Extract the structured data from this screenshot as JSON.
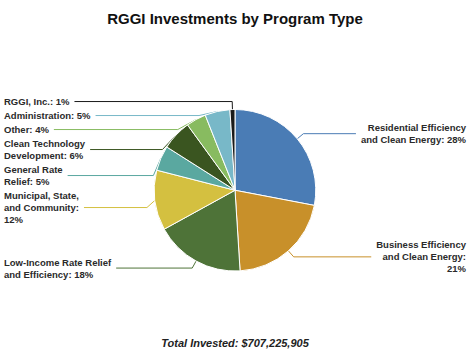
{
  "chart_data": {
    "type": "pie",
    "title": "RGGI Investments by Program Type",
    "subtitle": "Total Invested: $707,225,905",
    "categories": [
      "Residential Efficiency\nand Clean Energy: 28%",
      "Business Efficiency\nand Clean Energy:\n21%",
      "Low-Income Rate Relief\nand Efficiency: 18%",
      "Municipal, State,\nand Community:\n12%",
      "General Rate\nRelief: 5%",
      "Clean Technology\nDevelopment: 6%",
      "Other: 4%",
      "Administration: 5%",
      "RGGI, Inc.: 1%"
    ],
    "values": [
      28,
      21,
      18,
      12,
      5,
      6,
      4,
      5,
      1
    ],
    "colors": [
      "#4a7cb5",
      "#c8902a",
      "#4e7338",
      "#d4c040",
      "#5aa8a0",
      "#3a5520",
      "#88bb60",
      "#78b8c8",
      "#1a1a1a"
    ]
  }
}
